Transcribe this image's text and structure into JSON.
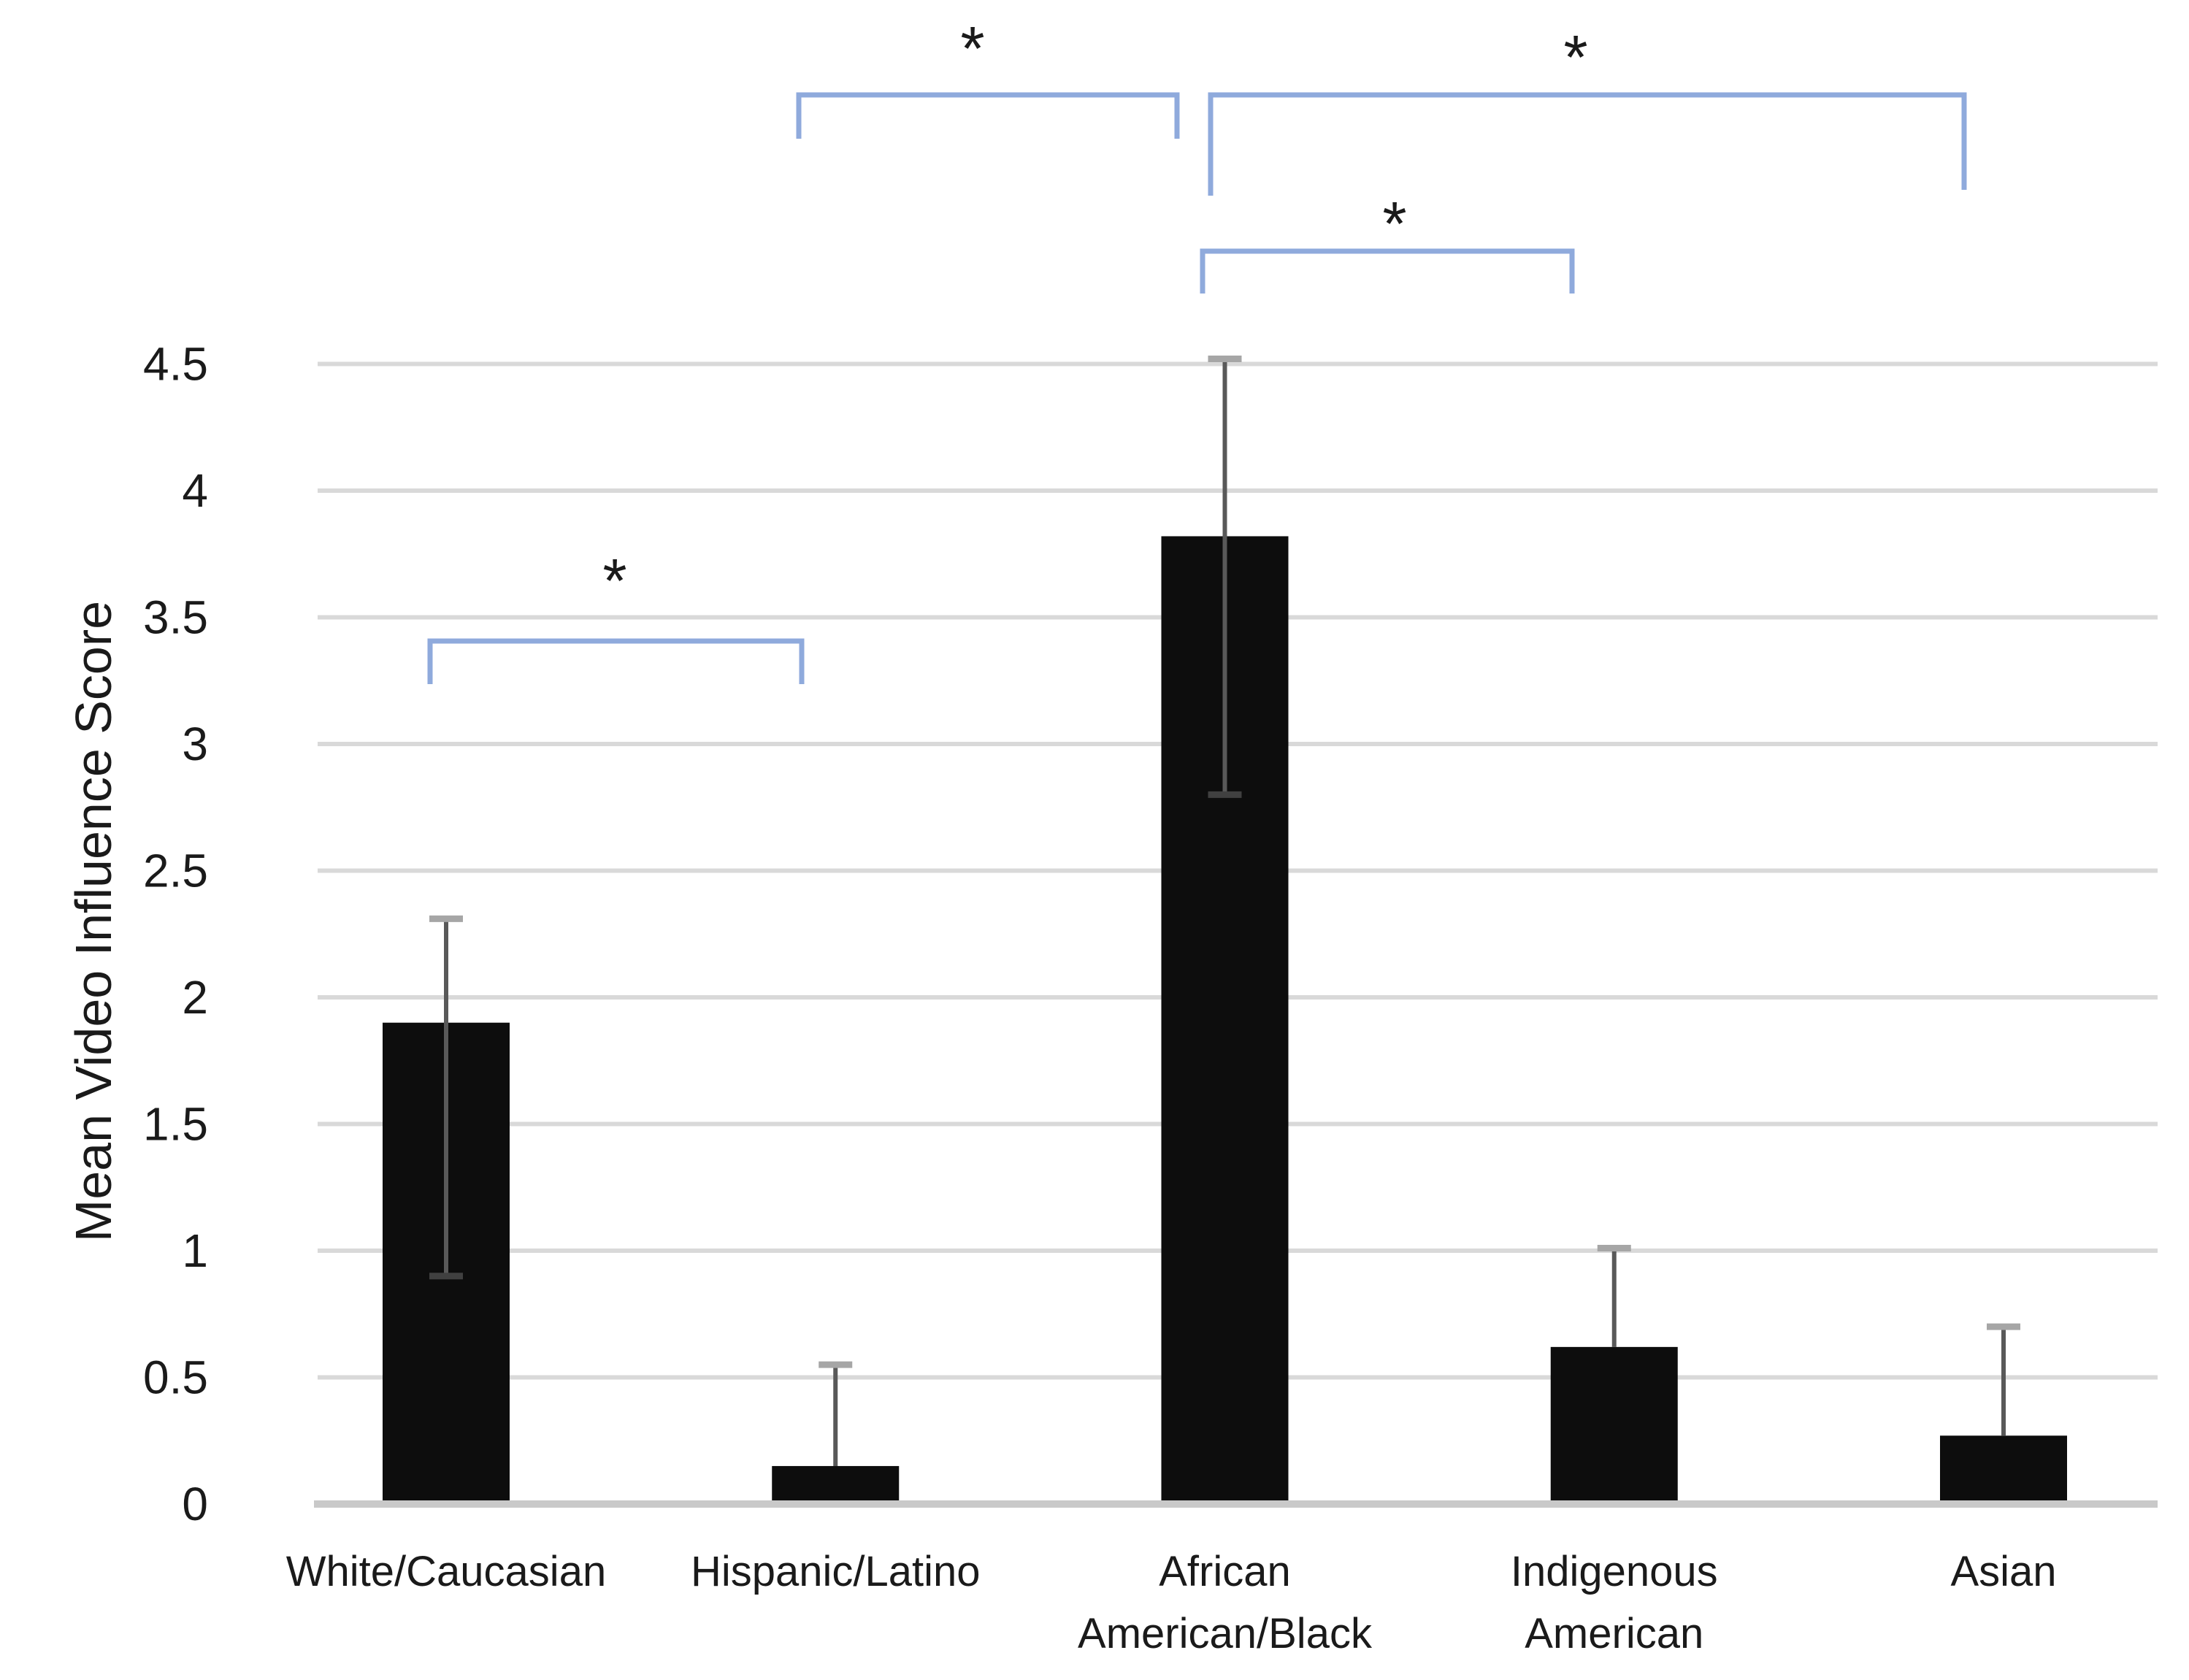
{
  "chart_data": {
    "type": "bar",
    "title": "",
    "xlabel": "",
    "ylabel": "Mean Video Influence Score",
    "ylim": [
      0,
      4.5
    ],
    "grid": true,
    "legend": null,
    "yticks": [
      {
        "value": 0,
        "label": "0"
      },
      {
        "value": 0.5,
        "label": "0.5"
      },
      {
        "value": 1,
        "label": "1"
      },
      {
        "value": 1.5,
        "label": "1.5"
      },
      {
        "value": 2,
        "label": "2"
      },
      {
        "value": 2.5,
        "label": "2.5"
      },
      {
        "value": 3,
        "label": "3"
      },
      {
        "value": 3.5,
        "label": "3.5"
      },
      {
        "value": 4,
        "label": "4"
      },
      {
        "value": 4.5,
        "label": "4.5"
      }
    ],
    "categories": [
      "White/Caucasian",
      "Hispanic/Latino",
      "African American/Black",
      "Indigenous American",
      "Asian"
    ],
    "category_label_lines": [
      [
        "White/Caucasian"
      ],
      [
        "Hispanic/Latino"
      ],
      [
        "African",
        "American/Black"
      ],
      [
        "Indigenous",
        "American"
      ],
      [
        "Asian"
      ]
    ],
    "values": [
      1.9,
      0.15,
      3.82,
      0.62,
      0.27
    ],
    "error_upper": [
      2.31,
      0.55,
      4.52,
      1.01,
      0.7
    ],
    "error_lower": [
      0.9,
      null,
      2.8,
      null,
      null
    ],
    "significance_marker": "*",
    "significance_brackets": [
      {
        "pair": [
          "White/Caucasian",
          "Hispanic/Latino"
        ],
        "marker": "*",
        "x1": 589,
        "x2": 1098,
        "y_top": 878,
        "leg1_bottom": 937,
        "leg2_bottom": 937,
        "star_x": 842,
        "star_y": 775
      },
      {
        "pair": [
          "Hispanic/Latino",
          "African American/Black"
        ],
        "marker": "*",
        "x1": 1094,
        "x2": 1612,
        "y_top": 130,
        "leg1_bottom": 190,
        "leg2_bottom": 190,
        "star_x": 1332,
        "star_y": 46
      },
      {
        "pair": [
          "African American/Black",
          "Asian"
        ],
        "marker": "*",
        "x1": 1658,
        "x2": 2690,
        "y_top": 130,
        "leg1_bottom": 268,
        "leg2_bottom": 260,
        "star_x": 2158,
        "star_y": 58
      },
      {
        "pair": [
          "African American/Black",
          "Indigenous American"
        ],
        "marker": "*",
        "x1": 1647,
        "x2": 2153,
        "y_top": 344,
        "leg1_bottom": 402,
        "leg2_bottom": 402,
        "star_x": 1910,
        "star_y": 286
      }
    ],
    "colors": {
      "bar": "#0d0d0d",
      "error_line": "#595959",
      "error_cap_upper": "#a6a6a6",
      "error_cap_lower": "#404040",
      "gridline": "#d9d9d9",
      "axis_line": "#c9c9c9",
      "bracket": "#8faadc",
      "text": "#1a1a1a",
      "background": "#ffffff"
    }
  }
}
